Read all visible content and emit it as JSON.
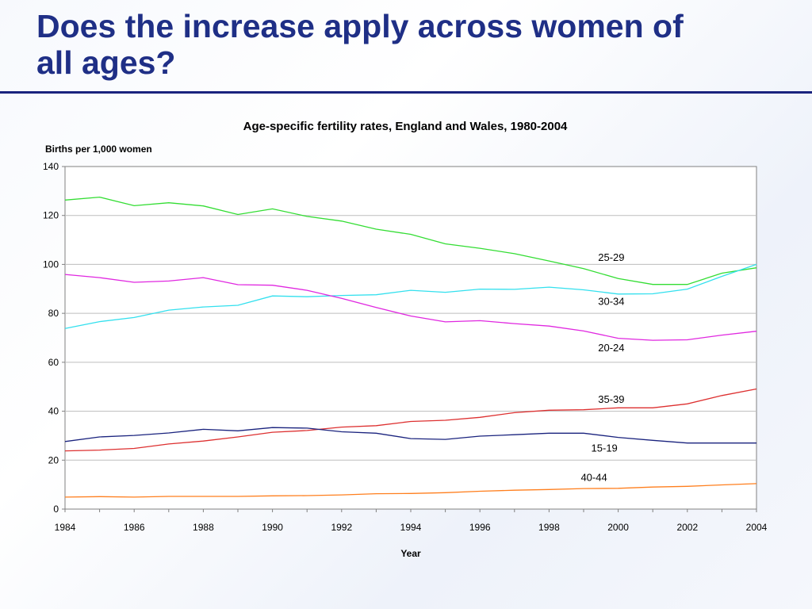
{
  "slide": {
    "title_line1": "Does the increase apply across women of",
    "title_line2": "all ages?"
  },
  "colors": {
    "title": "#1f2f86",
    "rule": "#1a237e",
    "grid": "#bdbdbd",
    "axis": "#808080"
  },
  "chart_data": {
    "type": "line",
    "title": "Age-specific fertility rates, England and Wales, 1980-2004",
    "xlabel": "Year",
    "ylabel": "Births per 1,000 women",
    "xlim": [
      1984,
      2004
    ],
    "ylim": [
      0,
      140
    ],
    "x_ticks": [
      1984,
      1986,
      1988,
      1990,
      1992,
      1994,
      1996,
      1998,
      2000,
      2002,
      2004
    ],
    "y_ticks": [
      0,
      20,
      40,
      60,
      80,
      100,
      120,
      140
    ],
    "grid": true,
    "x": [
      1984,
      1985,
      1986,
      1987,
      1988,
      1989,
      1990,
      1991,
      1992,
      1993,
      1994,
      1995,
      1996,
      1997,
      1998,
      1999,
      2000,
      2001,
      2002,
      2003,
      2004
    ],
    "series": [
      {
        "name": "25-29",
        "color": "#33dd33",
        "label_x": 1999.8,
        "label_y": 101.5,
        "values": [
          126.3,
          127.5,
          124.0,
          125.2,
          123.9,
          120.4,
          122.7,
          119.6,
          117.7,
          114.4,
          112.3,
          108.4,
          106.6,
          104.4,
          101.4,
          98.3,
          94.2,
          91.8,
          91.8,
          96.4,
          98.6
        ]
      },
      {
        "name": "30-34",
        "color": "#33e0ee",
        "label_x": 1999.8,
        "label_y": 83.5,
        "values": [
          73.8,
          76.6,
          78.3,
          81.3,
          82.6,
          83.3,
          87.1,
          86.8,
          87.3,
          87.6,
          89.4,
          88.6,
          89.9,
          89.8,
          90.7,
          89.6,
          87.9,
          88.0,
          89.9,
          95.1,
          100.0
        ]
      },
      {
        "name": "20-24",
        "color": "#e028e0",
        "label_x": 1999.8,
        "label_y": 64.5,
        "values": [
          95.9,
          94.6,
          92.7,
          93.2,
          94.6,
          91.7,
          91.5,
          89.4,
          86.1,
          82.4,
          78.9,
          76.5,
          77.0,
          75.8,
          74.8,
          72.8,
          69.8,
          69.0,
          69.2,
          71.1,
          72.7
        ]
      },
      {
        "name": "35-39",
        "color": "#dd3030",
        "label_x": 1999.8,
        "label_y": 43.5,
        "values": [
          23.8,
          24.1,
          24.8,
          26.6,
          27.8,
          29.5,
          31.4,
          32.1,
          33.5,
          34.1,
          35.8,
          36.3,
          37.5,
          39.4,
          40.4,
          40.6,
          41.4,
          41.4,
          43.0,
          46.4,
          49.1
        ]
      },
      {
        "name": "15-19",
        "color": "#1a237e",
        "label_x": 1999.6,
        "label_y": 23.5,
        "values": [
          27.6,
          29.5,
          30.1,
          31.1,
          32.6,
          32.0,
          33.3,
          33.1,
          31.6,
          31.0,
          28.8,
          28.5,
          29.8,
          30.4,
          31.0,
          31.0,
          29.3,
          28.1,
          27.0,
          27.0,
          27.0
        ]
      },
      {
        "name": "40-44",
        "color": "#ff7f1e",
        "label_x": 1999.3,
        "label_y": 11.5,
        "values": [
          4.9,
          5.1,
          4.9,
          5.2,
          5.2,
          5.2,
          5.4,
          5.5,
          5.8,
          6.3,
          6.4,
          6.7,
          7.3,
          7.7,
          8.0,
          8.4,
          8.5,
          9.0,
          9.3,
          9.9,
          10.4
        ]
      }
    ]
  }
}
